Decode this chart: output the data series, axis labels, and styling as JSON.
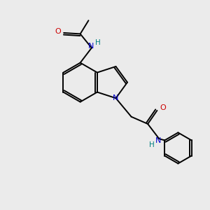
{
  "background_color": "#ebebeb",
  "bond_color": "#000000",
  "N_color": "#0000cc",
  "O_color": "#cc0000",
  "H_color": "#008080",
  "line_width": 1.4,
  "figsize": [
    3.0,
    3.0
  ],
  "dpi": 100,
  "xlim": [
    0,
    10
  ],
  "ylim": [
    0,
    10
  ]
}
